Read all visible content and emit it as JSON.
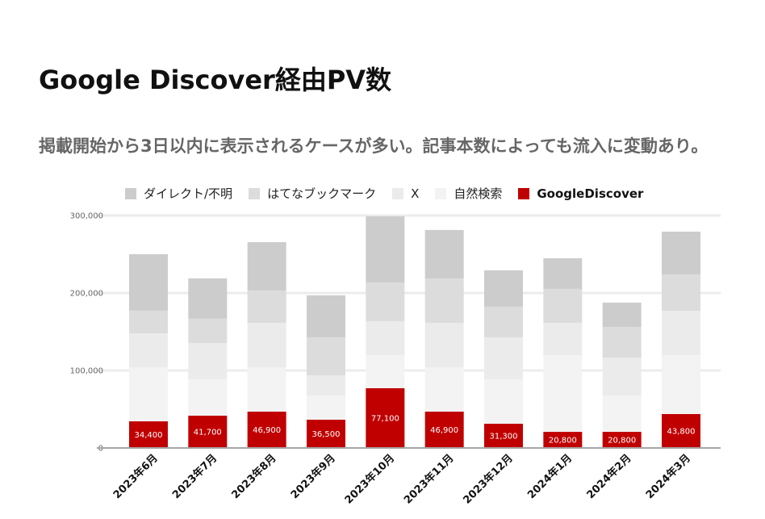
{
  "chart_data": {
    "type": "bar",
    "stacked": true,
    "title": "Google Discover経由PV数",
    "subtitle": "掲載開始から3日以内に表示されるケースが多い。記事本数によっても流入に変動あり。",
    "categories": [
      "2023年6月",
      "2023年7月",
      "2023年8月",
      "2023年9月",
      "2023年10月",
      "2023年11月",
      "2023年12月",
      "2024年1月",
      "2024年2月",
      "2024年3月"
    ],
    "series": [
      {
        "name": "ダイレクト/不明",
        "color": "#cccccc",
        "values": [
          72900,
          52100,
          62500,
          54200,
          85400,
          62500,
          46900,
          39600,
          31300,
          55200
        ]
      },
      {
        "name": "はてなブックマーク",
        "color": "#dcdcdc",
        "values": [
          29200,
          31300,
          41700,
          49000,
          50000,
          57300,
          39600,
          43800,
          39600,
          46900
        ]
      },
      {
        "name": "X",
        "color": "#ebebeb",
        "values": [
          43800,
          46900,
          57300,
          26000,
          43800,
          57300,
          54200,
          41700,
          49000,
          57300
        ]
      },
      {
        "name": "自然検索",
        "color": "#f3f3f3",
        "values": [
          69800,
          46900,
          57300,
          31300,
          42700,
          57300,
          57300,
          99000,
          46900,
          76000
        ]
      },
      {
        "name": "GoogleDiscover",
        "color": "#c00000",
        "values": [
          34400,
          41700,
          46900,
          36500,
          77100,
          46900,
          31300,
          20800,
          20800,
          43800
        ],
        "show_data_labels": true
      }
    ],
    "ylim": [
      0,
      300000
    ],
    "yticks": [
      0,
      100000,
      200000,
      300000
    ],
    "ytick_labels": [
      "0",
      "100,000",
      "200,000",
      "300,000"
    ],
    "grid": true,
    "legend_position": "top"
  }
}
